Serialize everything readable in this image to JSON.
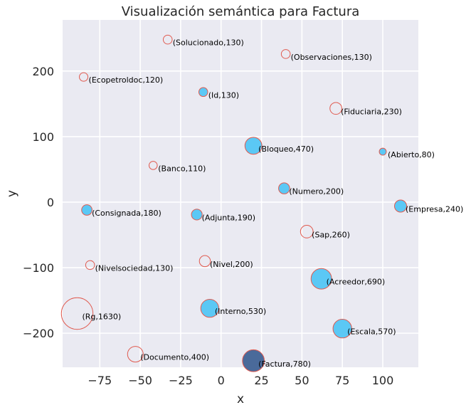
{
  "chart_data": {
    "type": "scatter",
    "title": "Visualización semántica para Factura",
    "xlabel": "x",
    "ylabel": "y",
    "xlim": [
      -98,
      122
    ],
    "ylim": [
      -252,
      278
    ],
    "xticks": [
      -75,
      -50,
      -25,
      0,
      25,
      50,
      75,
      100
    ],
    "yticks": [
      -200,
      -100,
      0,
      100,
      200
    ],
    "xtick_labels": [
      "−75",
      "−50",
      "−25",
      "0",
      "25",
      "50",
      "75",
      "100"
    ],
    "ytick_labels": [
      "−200",
      "−100",
      "0",
      "100",
      "200"
    ],
    "grid": true,
    "colors": {
      "background": "#eaeaf2",
      "grid": "#ffffff",
      "filled_point": "#5bc8f5",
      "hollow_point_edge": "#e05a4f",
      "query_point": "#4a6a9a"
    },
    "points": [
      {
        "label": "(Solucionado,130)",
        "x": -33,
        "y": 248,
        "size": 130,
        "style": "hollow"
      },
      {
        "label": "(Observaciones,130)",
        "x": 40,
        "y": 226,
        "size": 130,
        "style": "hollow"
      },
      {
        "label": "(Ecopetroldoc,120)",
        "x": -85,
        "y": 191,
        "size": 120,
        "style": "hollow"
      },
      {
        "label": "(Id,130)",
        "x": -11,
        "y": 168,
        "size": 130,
        "style": "filled"
      },
      {
        "label": "(Fiduciaria,230)",
        "x": 71,
        "y": 143,
        "size": 230,
        "style": "hollow"
      },
      {
        "label": "(Bloqueo,470)",
        "x": 20,
        "y": 86,
        "size": 470,
        "style": "filled"
      },
      {
        "label": "(Abierto,80)",
        "x": 100,
        "y": 77,
        "size": 80,
        "style": "filled"
      },
      {
        "label": "(Banco,110)",
        "x": -42,
        "y": 56,
        "size": 110,
        "style": "hollow"
      },
      {
        "label": "(Numero,200)",
        "x": 39,
        "y": 21,
        "size": 200,
        "style": "filled"
      },
      {
        "label": "(Consignada,180)",
        "x": -83,
        "y": -12,
        "size": 180,
        "style": "filled"
      },
      {
        "label": "(Empresa,240)",
        "x": 111,
        "y": -6,
        "size": 240,
        "style": "filled"
      },
      {
        "label": "(Adjunta,190)",
        "x": -15,
        "y": -19,
        "size": 190,
        "style": "filled"
      },
      {
        "label": "(Sap,260)",
        "x": 53,
        "y": -45,
        "size": 260,
        "style": "hollow"
      },
      {
        "label": "(Nivel,200)",
        "x": -10,
        "y": -90,
        "size": 200,
        "style": "hollow"
      },
      {
        "label": "(Nivelsociedad,130)",
        "x": -81,
        "y": -96,
        "size": 130,
        "style": "hollow"
      },
      {
        "label": "(Acreedor,690)",
        "x": 62,
        "y": -117,
        "size": 690,
        "style": "filled"
      },
      {
        "label": "(Interno,530)",
        "x": -7,
        "y": -162,
        "size": 530,
        "style": "filled"
      },
      {
        "label": "(Rg,1630)",
        "x": -89,
        "y": -170,
        "size": 1630,
        "style": "hollow"
      },
      {
        "label": "(Escala,570)",
        "x": 75,
        "y": -193,
        "size": 570,
        "style": "filled"
      },
      {
        "label": "(Documento,400)",
        "x": -53,
        "y": -232,
        "size": 400,
        "style": "hollow"
      },
      {
        "label": "(Factura,780)",
        "x": 20,
        "y": -242,
        "size": 780,
        "style": "query"
      }
    ]
  }
}
